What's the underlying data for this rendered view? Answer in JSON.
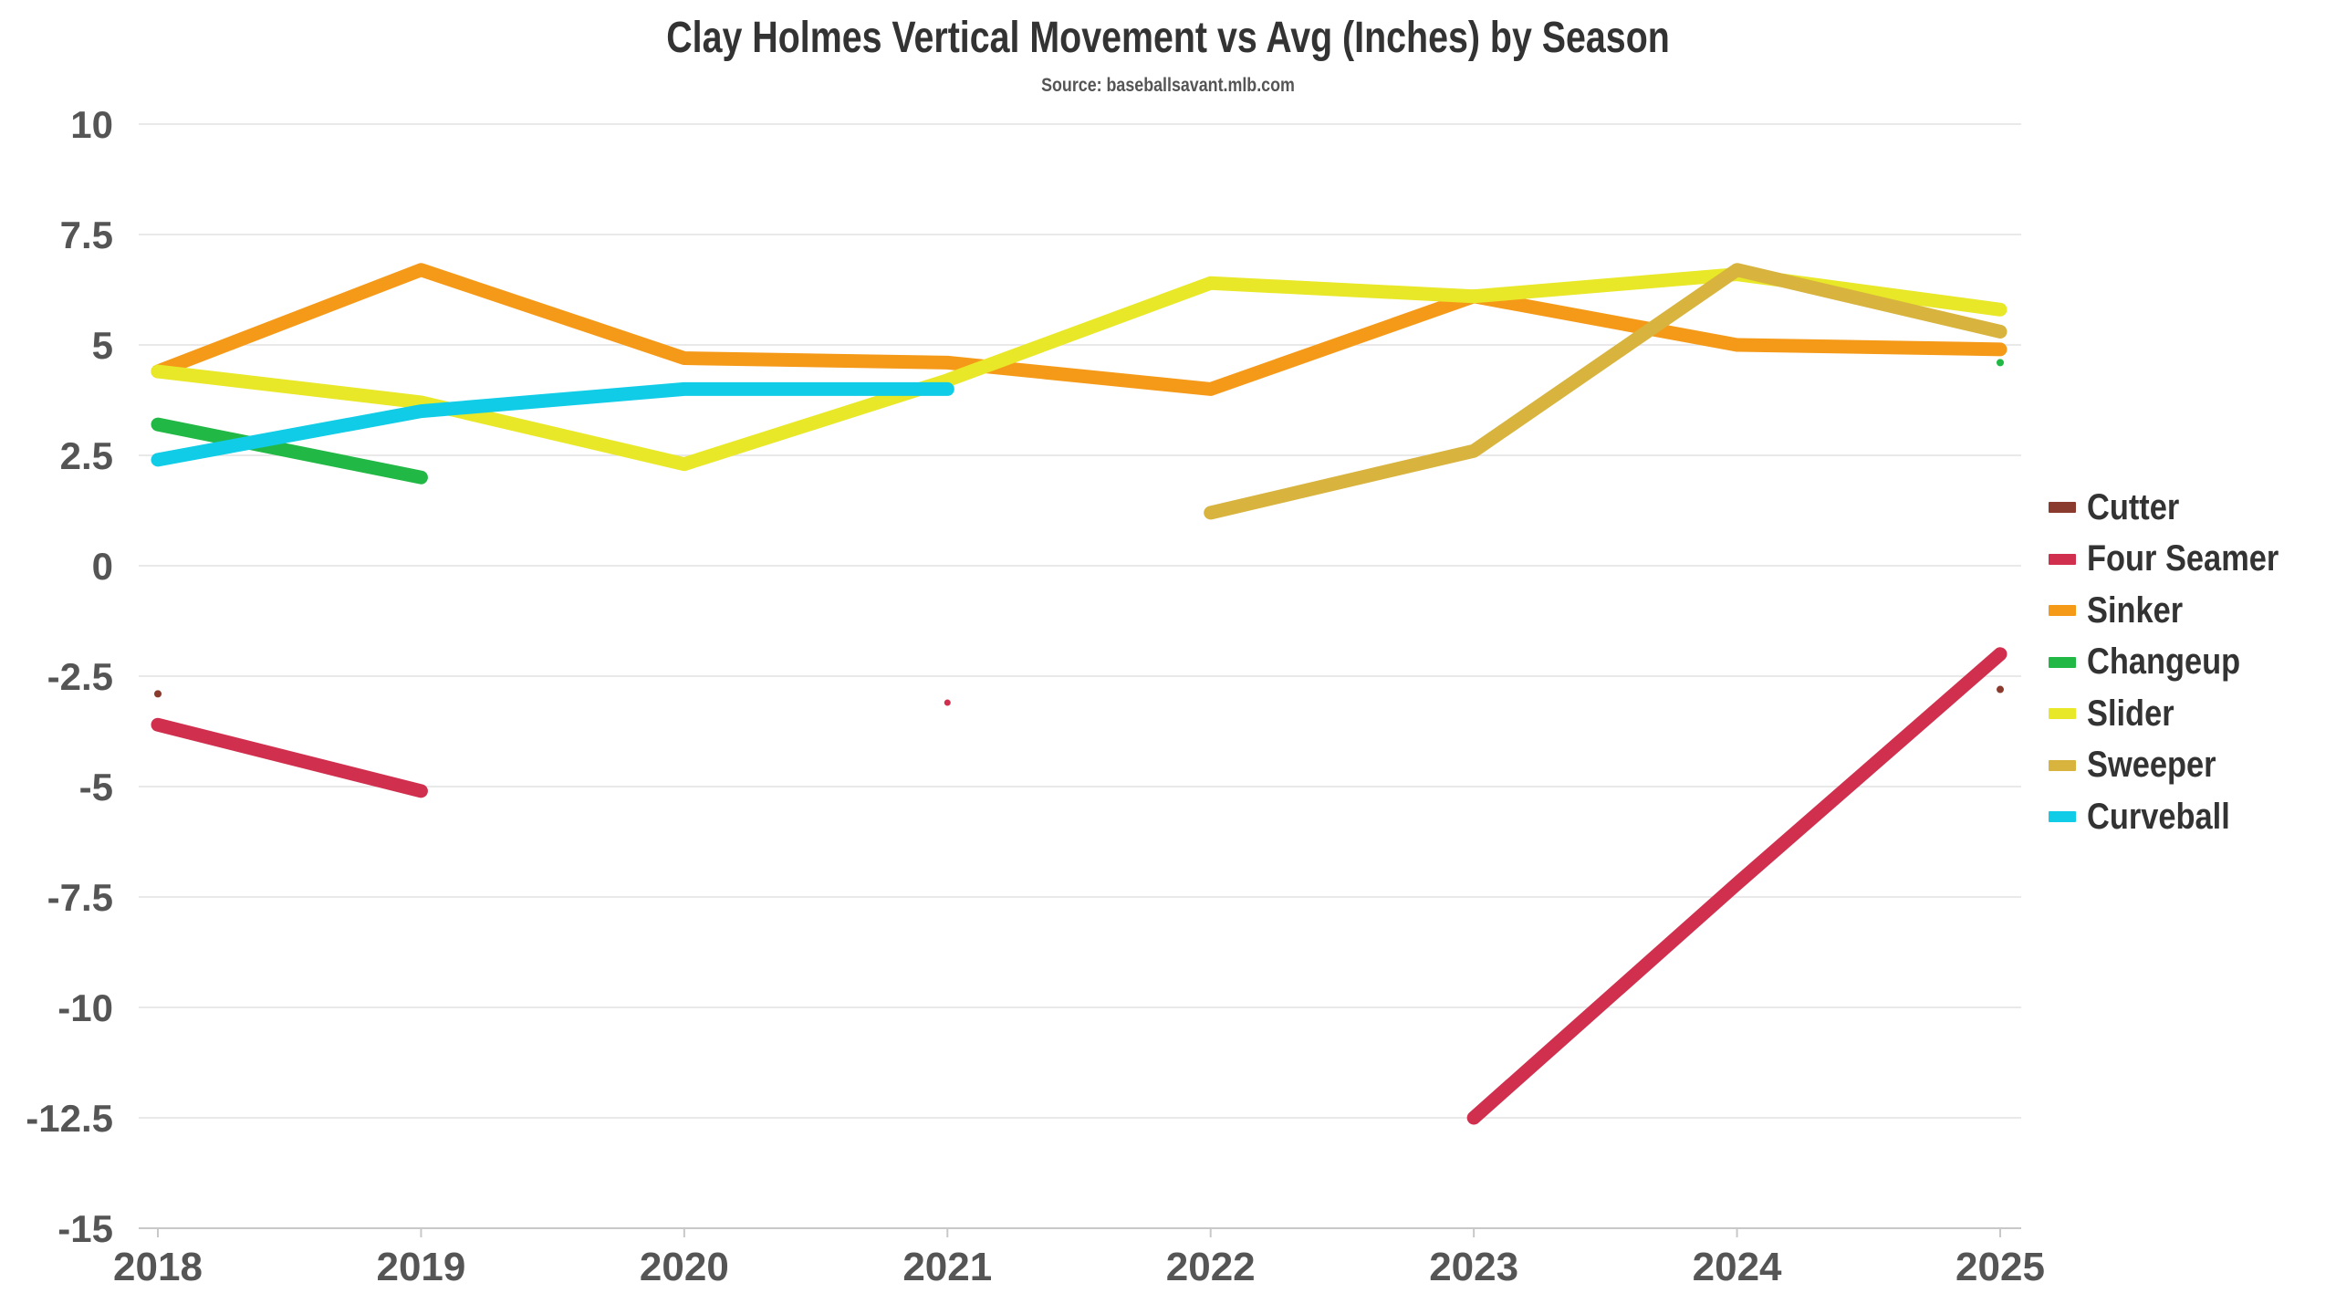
{
  "chart_data": {
    "type": "line",
    "title": "Clay Holmes Vertical Movement vs Avg (Inches) by Season",
    "subtitle": "Source: baseballsavant.mlb.com",
    "xlabel": "",
    "ylabel": "",
    "x": [
      2018,
      2019,
      2020,
      2021,
      2022,
      2023,
      2024,
      2025
    ],
    "x_tick_labels": [
      "2018",
      "2019",
      "2020",
      "2021",
      "2022",
      "2023",
      "2024",
      "2025"
    ],
    "ylim": [
      -15,
      10
    ],
    "y_ticks": [
      10,
      7.5,
      5,
      2.5,
      0,
      -2.5,
      -5,
      -7.5,
      -10,
      -12.5,
      -15
    ],
    "y_tick_labels": [
      "10",
      "7.5",
      "5",
      "2.5",
      "0",
      "-2.5",
      "-5",
      "-7.5",
      "-10",
      "-12.5",
      "-15"
    ],
    "grid": true,
    "legend_position": "right",
    "series": [
      {
        "name": "Cutter",
        "color": "#8B3A2E",
        "values": [
          -2.9,
          null,
          null,
          null,
          null,
          null,
          null,
          -2.8
        ]
      },
      {
        "name": "Four Seamer",
        "color": "#D0304E",
        "values": [
          -3.6,
          -5.1,
          null,
          null,
          null,
          -12.5,
          -7.2,
          -2.0
        ]
      },
      {
        "name": "Sinker",
        "color": "#F59A18",
        "values": [
          4.4,
          6.7,
          4.7,
          4.6,
          4.0,
          6.1,
          5.0,
          4.9
        ]
      },
      {
        "name": "Changeup",
        "color": "#22B845",
        "values": [
          3.2,
          2.0,
          null,
          null,
          null,
          null,
          null,
          4.6
        ]
      },
      {
        "name": "Slider",
        "color": "#E8E828",
        "values": [
          4.4,
          3.7,
          2.3,
          4.2,
          6.4,
          6.1,
          6.6,
          5.8
        ]
      },
      {
        "name": "Sweeper",
        "color": "#D8B43E",
        "values": [
          null,
          null,
          null,
          null,
          1.2,
          2.6,
          6.7,
          5.3
        ]
      },
      {
        "name": "Curveball",
        "color": "#10CCE6",
        "values": [
          2.4,
          3.5,
          4.0,
          4.0,
          null,
          null,
          null,
          null
        ]
      }
    ],
    "annotations": [
      {
        "series": "Four Seamer",
        "x": 2021,
        "y": -3.1
      }
    ]
  }
}
